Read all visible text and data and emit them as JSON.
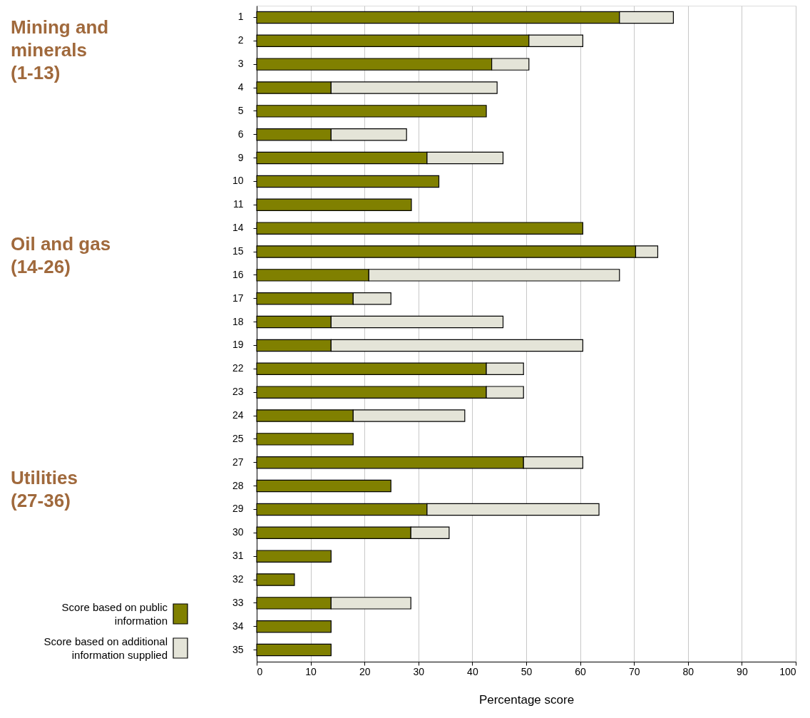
{
  "chart_data": {
    "type": "bar",
    "orientation": "horizontal",
    "stacked": true,
    "xlabel": "Percentage score",
    "categories": [
      "1",
      "2",
      "3",
      "4",
      "5",
      "6",
      "9",
      "10",
      "11",
      "14",
      "15",
      "16",
      "17",
      "18",
      "19",
      "22",
      "23",
      "24",
      "25",
      "27",
      "28",
      "29",
      "30",
      "31",
      "32",
      "33",
      "34",
      "35"
    ],
    "series": [
      {
        "name": "Score based on public information",
        "color": "#808000",
        "values": [
          67.3,
          50.5,
          43.6,
          13.8,
          42.6,
          13.8,
          31.6,
          33.8,
          28.7,
          60.5,
          70.3,
          20.8,
          17.9,
          13.8,
          13.8,
          42.6,
          42.6,
          17.9,
          17.9,
          49.5,
          24.9,
          31.6,
          28.6,
          13.8,
          7.0,
          13.8,
          13.8,
          13.8
        ]
      },
      {
        "name": "Score based on additional information supplied",
        "color": "#e4e4d8",
        "values": [
          10.0,
          10.0,
          6.9,
          30.8,
          null,
          14.0,
          14.1,
          null,
          null,
          null,
          4.1,
          46.5,
          7.0,
          31.9,
          46.7,
          6.9,
          6.9,
          20.7,
          null,
          11.0,
          null,
          31.9,
          7.1,
          null,
          null,
          14.8,
          null,
          null
        ]
      }
    ],
    "xlim": [
      0,
      100
    ],
    "xticks": [
      0,
      10,
      20,
      30,
      40,
      50,
      60,
      70,
      80,
      90,
      100
    ],
    "grid": "x",
    "legend": "bottom left",
    "annotations": [
      "Mining and\nminerals\n(1-13)",
      "Oil and gas\n(14-26)",
      "Utilities\n(27-36)"
    ]
  }
}
